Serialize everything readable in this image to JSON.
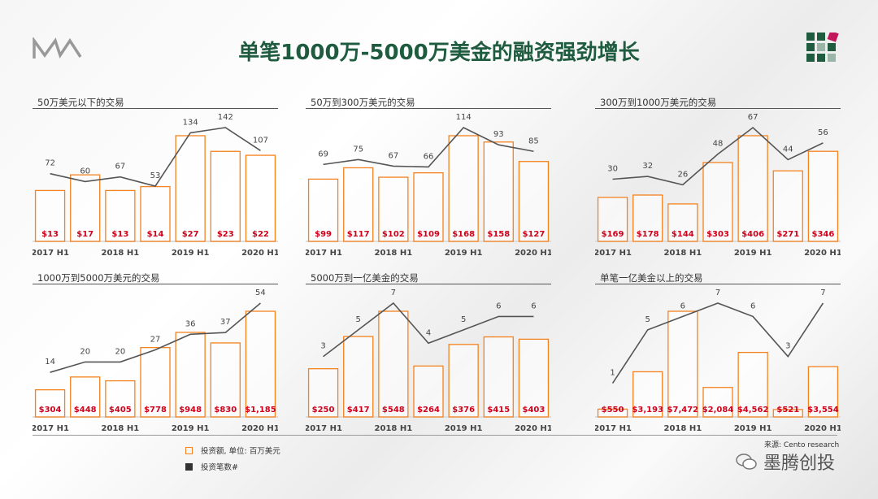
{
  "header": {
    "title": "单笔1000万-5000万美金的融资强劲增长",
    "logo_text": "MW"
  },
  "chart_data": [
    {
      "type": "bar+line",
      "title": "50万美元以下的交易",
      "x_ticks": [
        "2017 H1",
        "",
        "2018 H1",
        "",
        "2019 H1",
        "",
        "2020 H1"
      ],
      "amounts": [
        13,
        17,
        13,
        14,
        27,
        23,
        22
      ],
      "counts": [
        72,
        60,
        67,
        53,
        134,
        142,
        107
      ]
    },
    {
      "type": "bar+line",
      "title": "50万到300万美元的交易",
      "x_ticks": [
        "2017 H1",
        "",
        "2018 H1",
        "",
        "2019 H1",
        "",
        "2020 H1"
      ],
      "amounts": [
        99,
        117,
        102,
        109,
        168,
        158,
        127
      ],
      "counts": [
        69,
        75,
        67,
        66,
        114,
        93,
        85
      ]
    },
    {
      "type": "bar+line",
      "title": "300万到1000万美元的交易",
      "x_ticks": [
        "2017 H1",
        "",
        "2018 H1",
        "",
        "2019 H1",
        "",
        "2020 H1"
      ],
      "amounts": [
        169,
        178,
        144,
        303,
        406,
        271,
        346
      ],
      "counts": [
        30,
        32,
        26,
        48,
        67,
        44,
        56
      ]
    },
    {
      "type": "bar+line",
      "title": "1000万到5000万美元的交易",
      "x_ticks": [
        "2017 H1",
        "",
        "2018 H1",
        "",
        "2019 H1",
        "",
        "2020 H1"
      ],
      "amounts": [
        304,
        448,
        405,
        778,
        948,
        830,
        1185
      ],
      "counts": [
        14,
        20,
        20,
        27,
        36,
        37,
        54
      ]
    },
    {
      "type": "bar+line",
      "title": "5000万到一亿美金的交易",
      "x_ticks": [
        "2017 H1",
        "",
        "2018 H1",
        "",
        "2019 H1",
        "",
        "2020 H1"
      ],
      "amounts": [
        250,
        417,
        548,
        264,
        376,
        415,
        403
      ],
      "counts": [
        3,
        5,
        7,
        4,
        5,
        6,
        6
      ]
    },
    {
      "type": "bar+line",
      "title": "单笔一亿美金以上的交易",
      "x_ticks": [
        "2017 H1",
        "",
        "2018 H1",
        "",
        "2019 H1",
        "",
        "2020 H1"
      ],
      "amounts": [
        550,
        3193,
        7472,
        2084,
        4562,
        521,
        3554
      ],
      "counts": [
        1,
        5,
        6,
        7,
        6,
        3,
        7
      ]
    }
  ],
  "legend": {
    "bar": "投资额, 单位: 百万美元",
    "line": "投资笔数#"
  },
  "colors": {
    "bar": "#f5821f",
    "line": "#555555",
    "amount_label": "#d0021b",
    "title": "#1e5b3f"
  },
  "source": "来源: Cento research",
  "watermark": "墨腾创投"
}
